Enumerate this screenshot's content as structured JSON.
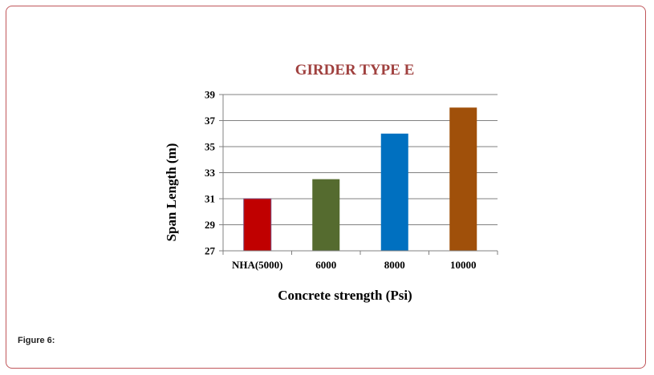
{
  "figure": {
    "caption": "Figure 6:"
  },
  "colors": {
    "frame_border": "#c0565a",
    "title": "#a0413f",
    "grid": "#808080"
  },
  "chart_data": {
    "type": "bar",
    "title": "GIRDER TYPE E",
    "xlabel": "Concrete strength (Psi)",
    "ylabel": "Span Length (m)",
    "categories": [
      "NHA(5000)",
      "6000",
      "8000",
      "10000"
    ],
    "values": [
      31,
      32.5,
      36,
      38
    ],
    "bar_colors": [
      "#c00000",
      "#556b2f",
      "#0070c0",
      "#a0500a"
    ],
    "ylim": [
      27,
      39
    ],
    "yticks": [
      27,
      29,
      31,
      33,
      35,
      37,
      39
    ],
    "grid": true,
    "legend": "none"
  }
}
